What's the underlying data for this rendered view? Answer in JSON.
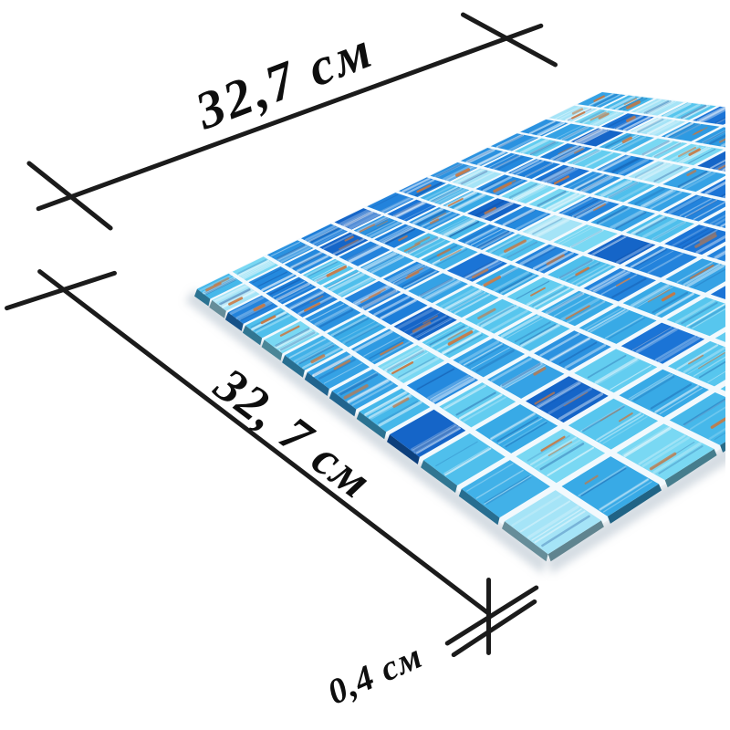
{
  "page": {
    "background": "#ffffff"
  },
  "annotations": {
    "width_label": "32,7 см",
    "height_label": "32, 7 см",
    "thickness_label": "0,4 см",
    "line_color": "#1b1b1b",
    "text_color": "#0e0e0e"
  },
  "mosaic": {
    "grid_rows": 13,
    "grid_cols": 13,
    "grout_color": "#f2f9fd",
    "tile_palette": [
      "#1565c8",
      "#1b74d6",
      "#2383dc",
      "#2b92e0",
      "#35a2e5",
      "#41b1e8",
      "#4fbfec",
      "#63cdf0",
      "#79d8f3",
      "#2b92e0",
      "#2383dc",
      "#35a2e5",
      "#1b74d6",
      "#2e9ae2",
      "#46b8ea",
      "#1d7ed9",
      "#38aae6",
      "#57c6ee",
      "#2489de",
      "#a5e4f7"
    ],
    "copper_streak_color": "#c9763e",
    "light_streak_color": "#ffffff",
    "dark_streak_color": "#0b3f8e",
    "shadow_color": "rgba(150,168,186,0.40)"
  }
}
